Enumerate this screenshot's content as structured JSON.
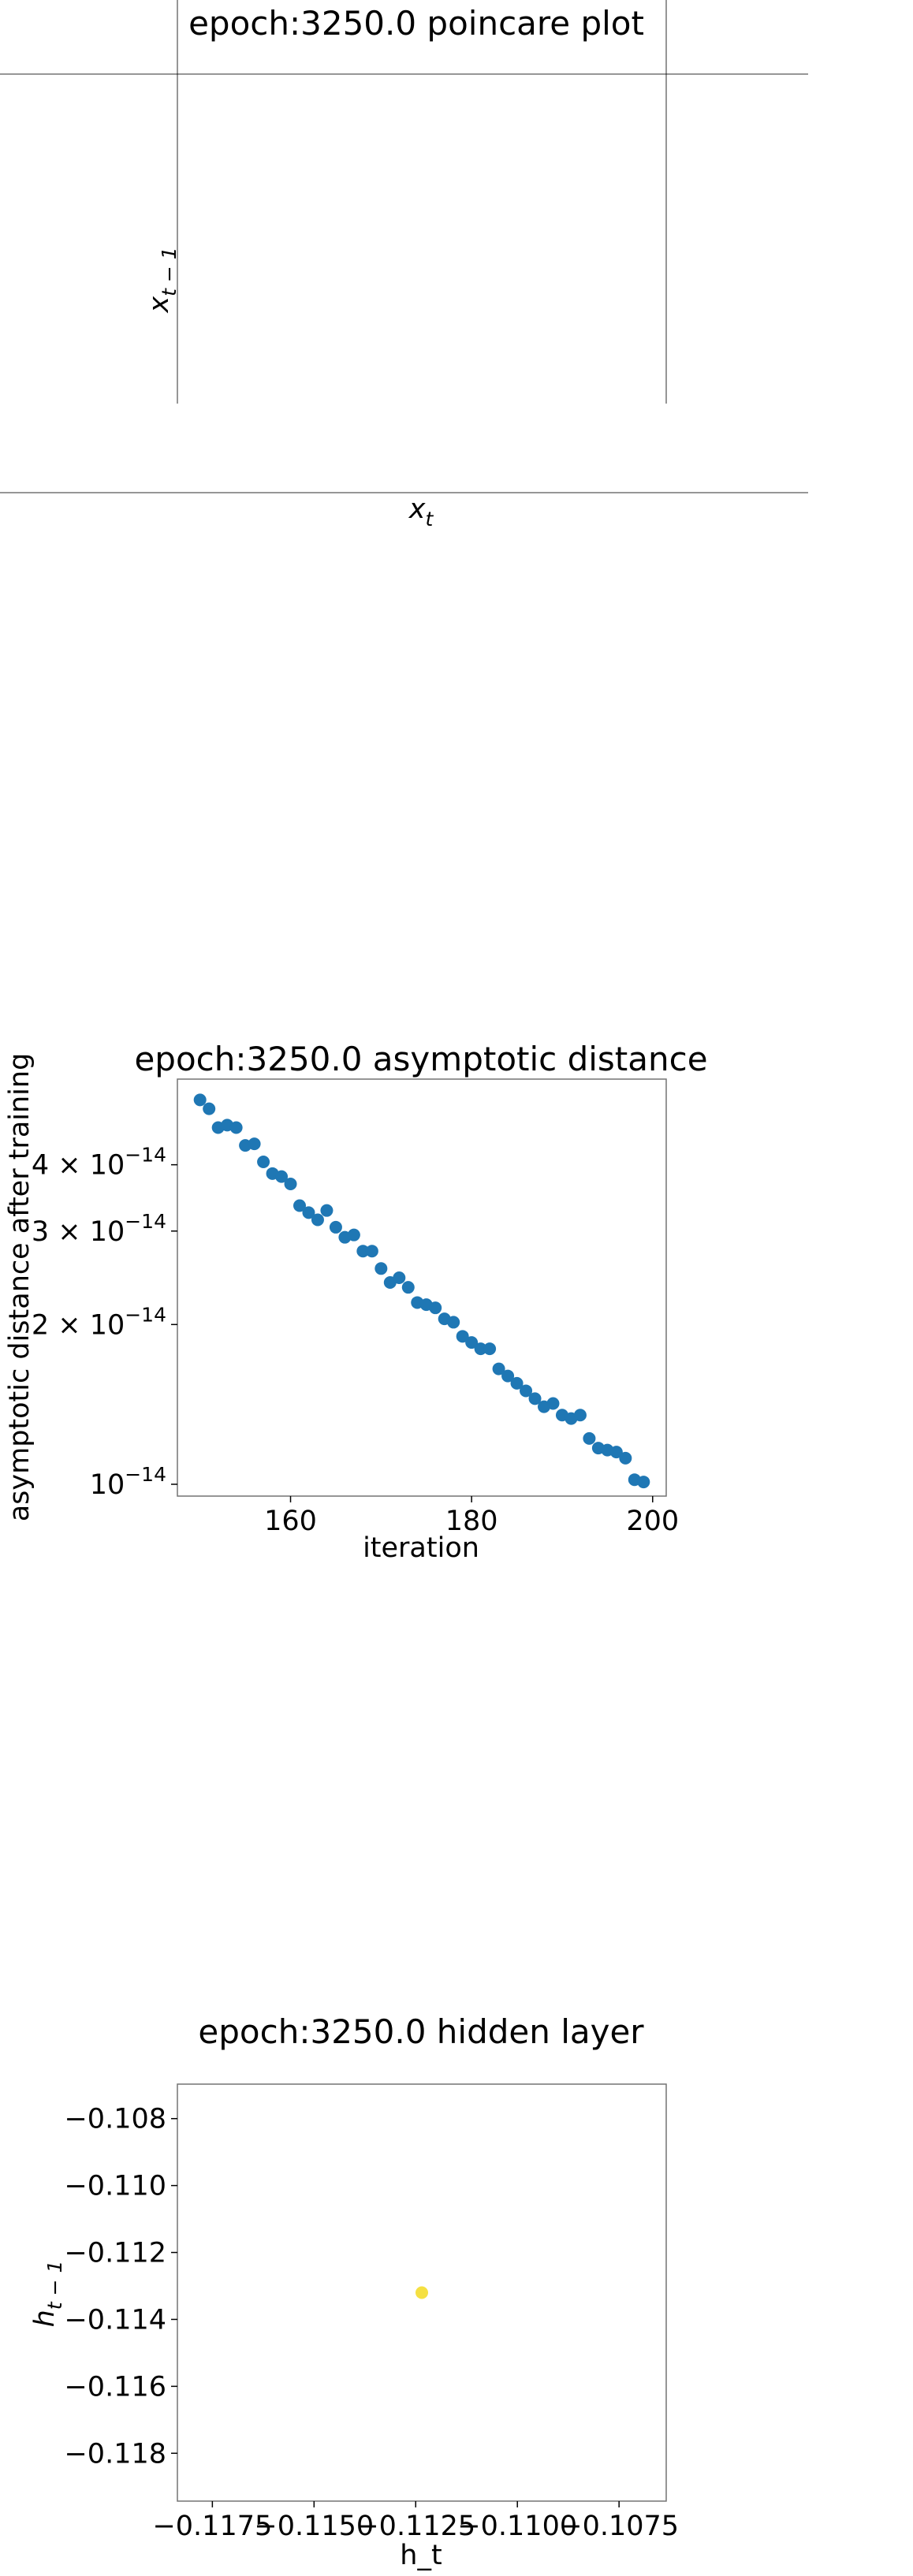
{
  "chart_data": [
    {
      "type": "line",
      "title": "epoch:3250.0 poincare plot",
      "xlabel": "x_t",
      "ylabel": "x_{t-1}",
      "series": [],
      "grid": false
    },
    {
      "type": "scatter",
      "title": "epoch:3250.0 asymptotic distance",
      "xlabel": "iteration",
      "ylabel": "asymptotic distance after training",
      "yscale": "log",
      "xlim": [
        147.5,
        201.5
      ],
      "ylim": [
        9.5e-15,
        5.8e-14
      ],
      "xticks": [
        160,
        180,
        200
      ],
      "xtick_labels": [
        "160",
        "180",
        "200"
      ],
      "yticks": [
        1e-14,
        2e-14,
        3e-14,
        4e-14
      ],
      "ytick_labels": [
        {
          "mantissa": "",
          "base": "10",
          "exp": "−14"
        },
        {
          "mantissa": "2 × ",
          "base": "10",
          "exp": "−14"
        },
        {
          "mantissa": "3 × ",
          "base": "10",
          "exp": "−14"
        },
        {
          "mantissa": "4 × ",
          "base": "10",
          "exp": "−14"
        }
      ],
      "color": "#1f77b4",
      "grid": false,
      "series": [
        {
          "x": [
            150,
            151,
            152,
            153,
            154,
            155,
            156,
            157,
            158,
            159,
            160,
            161,
            162,
            163,
            164,
            165,
            166,
            167,
            168,
            169,
            170,
            171,
            172,
            173,
            174,
            175,
            176,
            177,
            178,
            179,
            180,
            181,
            182,
            183,
            184,
            185,
            186,
            187,
            188,
            189,
            190,
            191,
            192,
            193,
            194,
            195,
            196,
            197,
            198,
            199
          ],
          "y": [
            5.3e-14,
            5.1e-14,
            4.7e-14,
            4.75e-14,
            4.7e-14,
            4.35e-14,
            4.38e-14,
            4.05e-14,
            3.85e-14,
            3.8e-14,
            3.68e-14,
            3.35e-14,
            3.25e-14,
            3.15e-14,
            3.28e-14,
            3.05e-14,
            2.92e-14,
            2.95e-14,
            2.75e-14,
            2.75e-14,
            2.55e-14,
            2.4e-14,
            2.45e-14,
            2.35e-14,
            2.2e-14,
            2.18e-14,
            2.15e-14,
            2.05e-14,
            2.02e-14,
            1.9e-14,
            1.85e-14,
            1.8e-14,
            1.8e-14,
            1.65e-14,
            1.6e-14,
            1.55e-14,
            1.5e-14,
            1.45e-14,
            1.4e-14,
            1.42e-14,
            1.35e-14,
            1.33e-14,
            1.35e-14,
            1.22e-14,
            1.17e-14,
            1.16e-14,
            1.15e-14,
            1.12e-14,
            1.02e-14,
            1.01e-14
          ]
        }
      ]
    },
    {
      "type": "scatter",
      "title": "epoch:3250.0 hidden layer",
      "xlabel": "h_t",
      "ylabel": "h_{t-1}",
      "xlim": [
        -0.11836,
        -0.10634
      ],
      "ylim": [
        -0.11943,
        -0.10697
      ],
      "xticks": [
        -0.1175,
        -0.115,
        -0.1125,
        -0.11,
        -0.1075
      ],
      "xtick_labels": [
        "−0.1175",
        "−0.1150",
        "−0.1125",
        "−0.1100",
        "−0.1075"
      ],
      "yticks": [
        -0.118,
        -0.116,
        -0.114,
        -0.112,
        -0.11,
        -0.108
      ],
      "ytick_labels": [
        "−0.118",
        "−0.116",
        "−0.114",
        "−0.112",
        "−0.110",
        "−0.108"
      ],
      "color": "#f5e042",
      "grid": false,
      "series": [
        {
          "x": [
            -0.11235
          ],
          "y": [
            -0.1132
          ]
        }
      ]
    }
  ]
}
